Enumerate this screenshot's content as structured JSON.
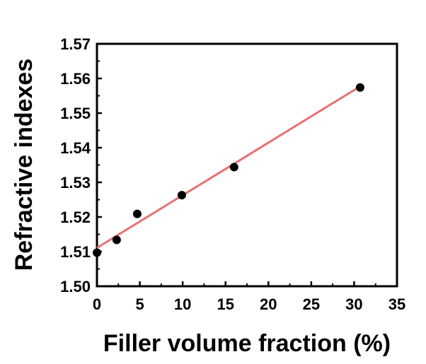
{
  "chart_data": {
    "type": "scatter",
    "title": "",
    "xlabel": "Filler volume fraction (%)",
    "ylabel": "Refractive indexes",
    "xlim": [
      0,
      35
    ],
    "ylim": [
      1.5,
      1.57
    ],
    "x_ticks": [
      0,
      5,
      10,
      15,
      20,
      25,
      30,
      35
    ],
    "y_ticks": [
      1.5,
      1.51,
      1.52,
      1.53,
      1.54,
      1.55,
      1.56,
      1.57
    ],
    "x_tick_labels": [
      "0",
      "5",
      "10",
      "15",
      "20",
      "25",
      "30",
      "35"
    ],
    "y_tick_labels": [
      "1.50",
      "1.51",
      "1.52",
      "1.53",
      "1.54",
      "1.55",
      "1.56",
      "1.57"
    ],
    "grid": false,
    "series": [
      {
        "type": "scatter",
        "color": "#000000",
        "x": [
          0,
          2.3,
          4.7,
          9.9,
          16.0,
          30.7
        ],
        "y": [
          1.5097,
          1.5134,
          1.5209,
          1.5263,
          1.5344,
          1.5574
        ]
      },
      {
        "type": "line",
        "color": "#e87070",
        "x": [
          0,
          30.7
        ],
        "y": [
          1.5111,
          1.5577
        ]
      }
    ]
  }
}
